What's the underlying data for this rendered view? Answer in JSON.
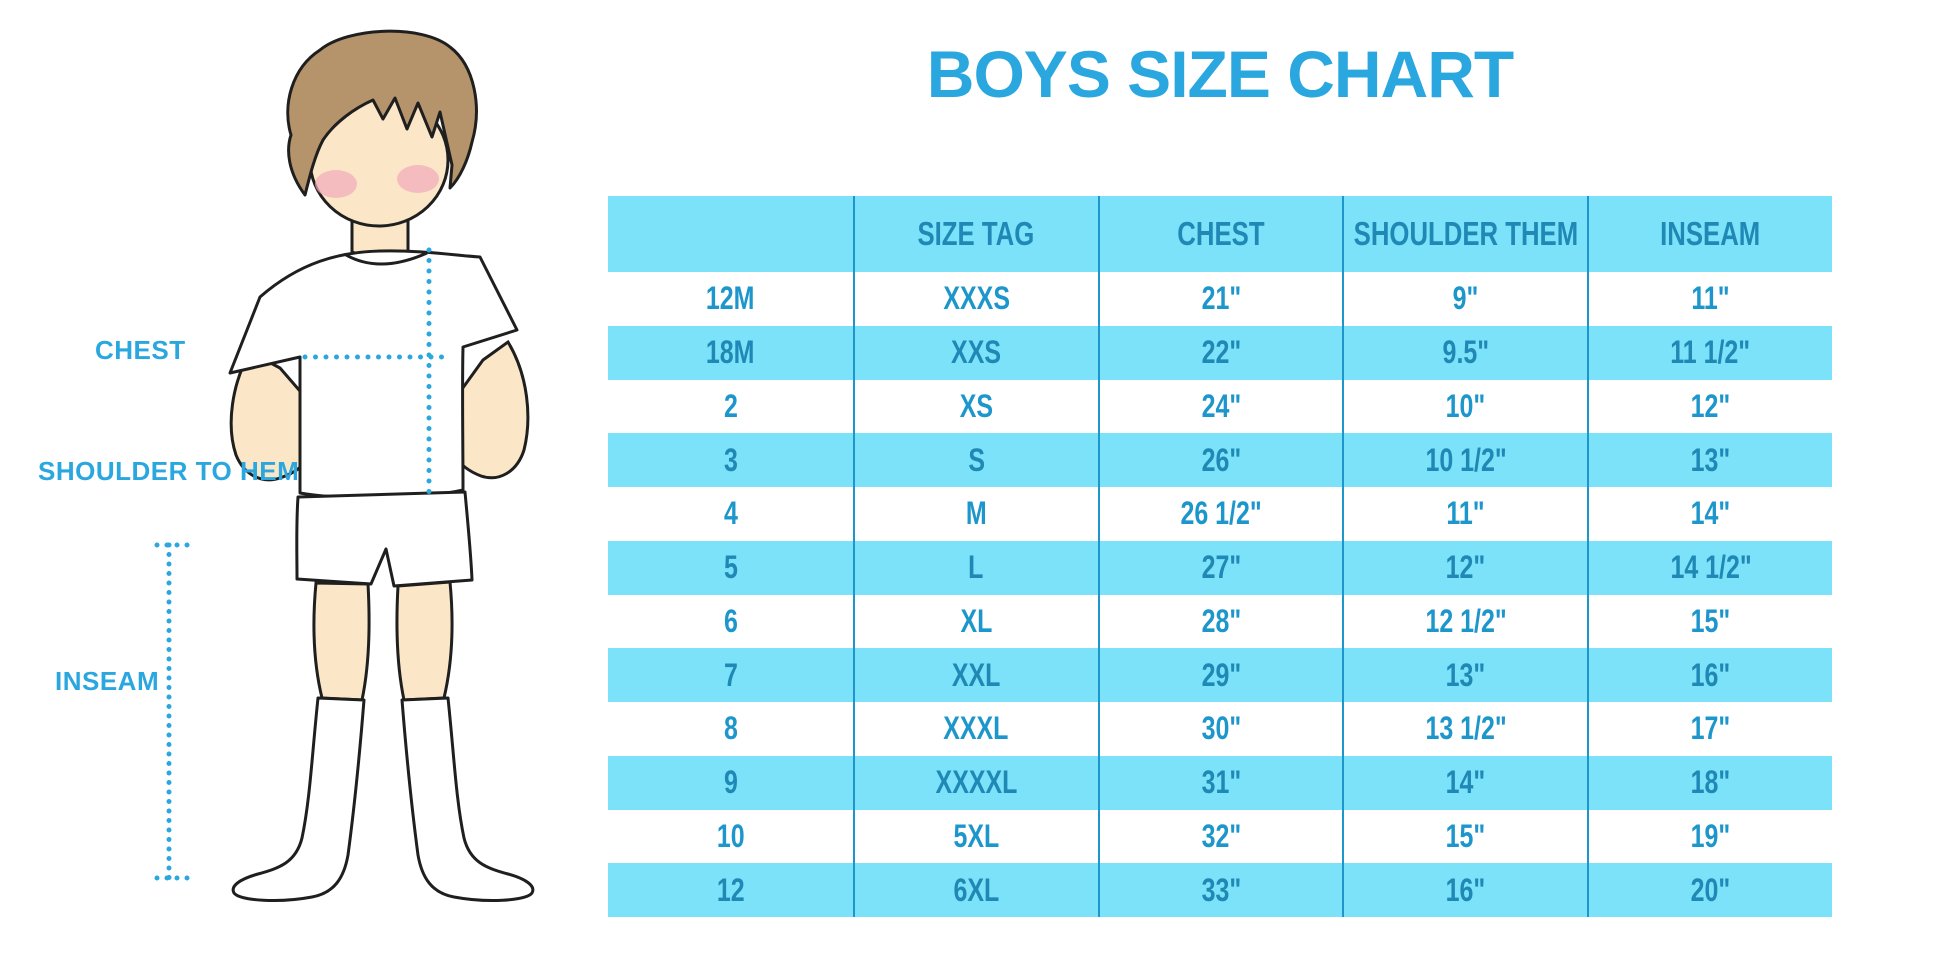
{
  "title": "BOYS SIZE CHART",
  "colors": {
    "accent": "#2AA7DF",
    "mid": "#1D96CB",
    "band": "#7BE2FA",
    "deep": "#1F88B5",
    "hair": "#B5946B",
    "skin": "#FBE7C7",
    "blush": "#F2A9BC",
    "ink": "#1F1F1F"
  },
  "figure": {
    "chest_label": "CHEST",
    "shoulder_to_hem_label": "SHOULDER TO HEM",
    "inseam_label": "INSEAM"
  },
  "chart_data": {
    "type": "table",
    "title": "BOYS SIZE CHART",
    "columns": [
      "",
      "SIZE TAG",
      "CHEST",
      "SHOULDER THEM",
      "INSEAM"
    ],
    "rows": [
      [
        "12M",
        "XXXS",
        "21\"",
        "9\"",
        "11\""
      ],
      [
        "18M",
        "XXS",
        "22\"",
        "9.5\"",
        "11 1/2\""
      ],
      [
        "2",
        "XS",
        "24\"",
        "10\"",
        "12\""
      ],
      [
        "3",
        "S",
        "26\"",
        "10 1/2\"",
        "13\""
      ],
      [
        "4",
        "M",
        "26 1/2\"",
        "11\"",
        "14\""
      ],
      [
        "5",
        "L",
        "27\"",
        "12\"",
        "14 1/2\""
      ],
      [
        "6",
        "XL",
        "28\"",
        "12 1/2\"",
        "15\""
      ],
      [
        "7",
        "XXL",
        "29\"",
        "13\"",
        "16\""
      ],
      [
        "8",
        "XXXL",
        "30\"",
        "13 1/2\"",
        "17\""
      ],
      [
        "9",
        "XXXXL",
        "31\"",
        "14\"",
        "18\""
      ],
      [
        "10",
        "5XL",
        "32\"",
        "15\"",
        "19\""
      ],
      [
        "12",
        "6XL",
        "33\"",
        "16\"",
        "20\""
      ]
    ],
    "layout": {
      "stripe_pattern": "alternating white / light-blue rows",
      "grid": "vertical column dividers only"
    }
  }
}
